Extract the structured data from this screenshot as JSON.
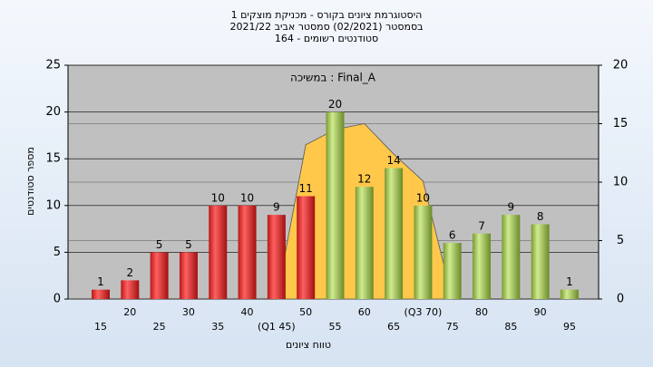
{
  "chart_data": {
    "type": "bar",
    "title_lines": [
      "היסטוגרמת ציונים בקורס - מכניקת מוצקים 1",
      "בסמסטר  (02/2021)  סמסטר אביב 2021/22",
      "סטודנטים רשומים - 164"
    ],
    "annotation": "במשיכה : Final_A",
    "y_label": "מספר סטודנטים",
    "x_label": "טווח ציונים",
    "categories": [
      "15",
      "20",
      "25",
      "30",
      "35",
      "40",
      "(Q1 45)",
      "50",
      "55",
      "60",
      "65",
      "(Q3 70)",
      "75",
      "80",
      "85",
      "90",
      "95"
    ],
    "values": [
      1,
      2,
      5,
      5,
      10,
      10,
      9,
      11,
      20,
      12,
      14,
      10,
      6,
      7,
      9,
      8,
      1
    ],
    "colors": [
      "red",
      "red",
      "red",
      "red",
      "red",
      "red",
      "red",
      "red",
      "green",
      "green",
      "green",
      "green",
      "green",
      "green",
      "green",
      "green",
      "green"
    ],
    "curve": {
      "values": [
        null,
        null,
        null,
        null,
        null,
        null,
        0,
        13.2,
        14.5,
        15,
        12.4,
        10.1,
        0,
        null,
        null,
        null,
        null
      ],
      "color": "#ffc84a",
      "axis": "y2"
    },
    "ylim": [
      0,
      25
    ],
    "yticks": [
      0,
      5,
      10,
      15,
      20,
      25
    ],
    "y2lim": [
      0,
      20
    ],
    "y2ticks": [
      0,
      5,
      10,
      15,
      20
    ],
    "grid": true
  }
}
